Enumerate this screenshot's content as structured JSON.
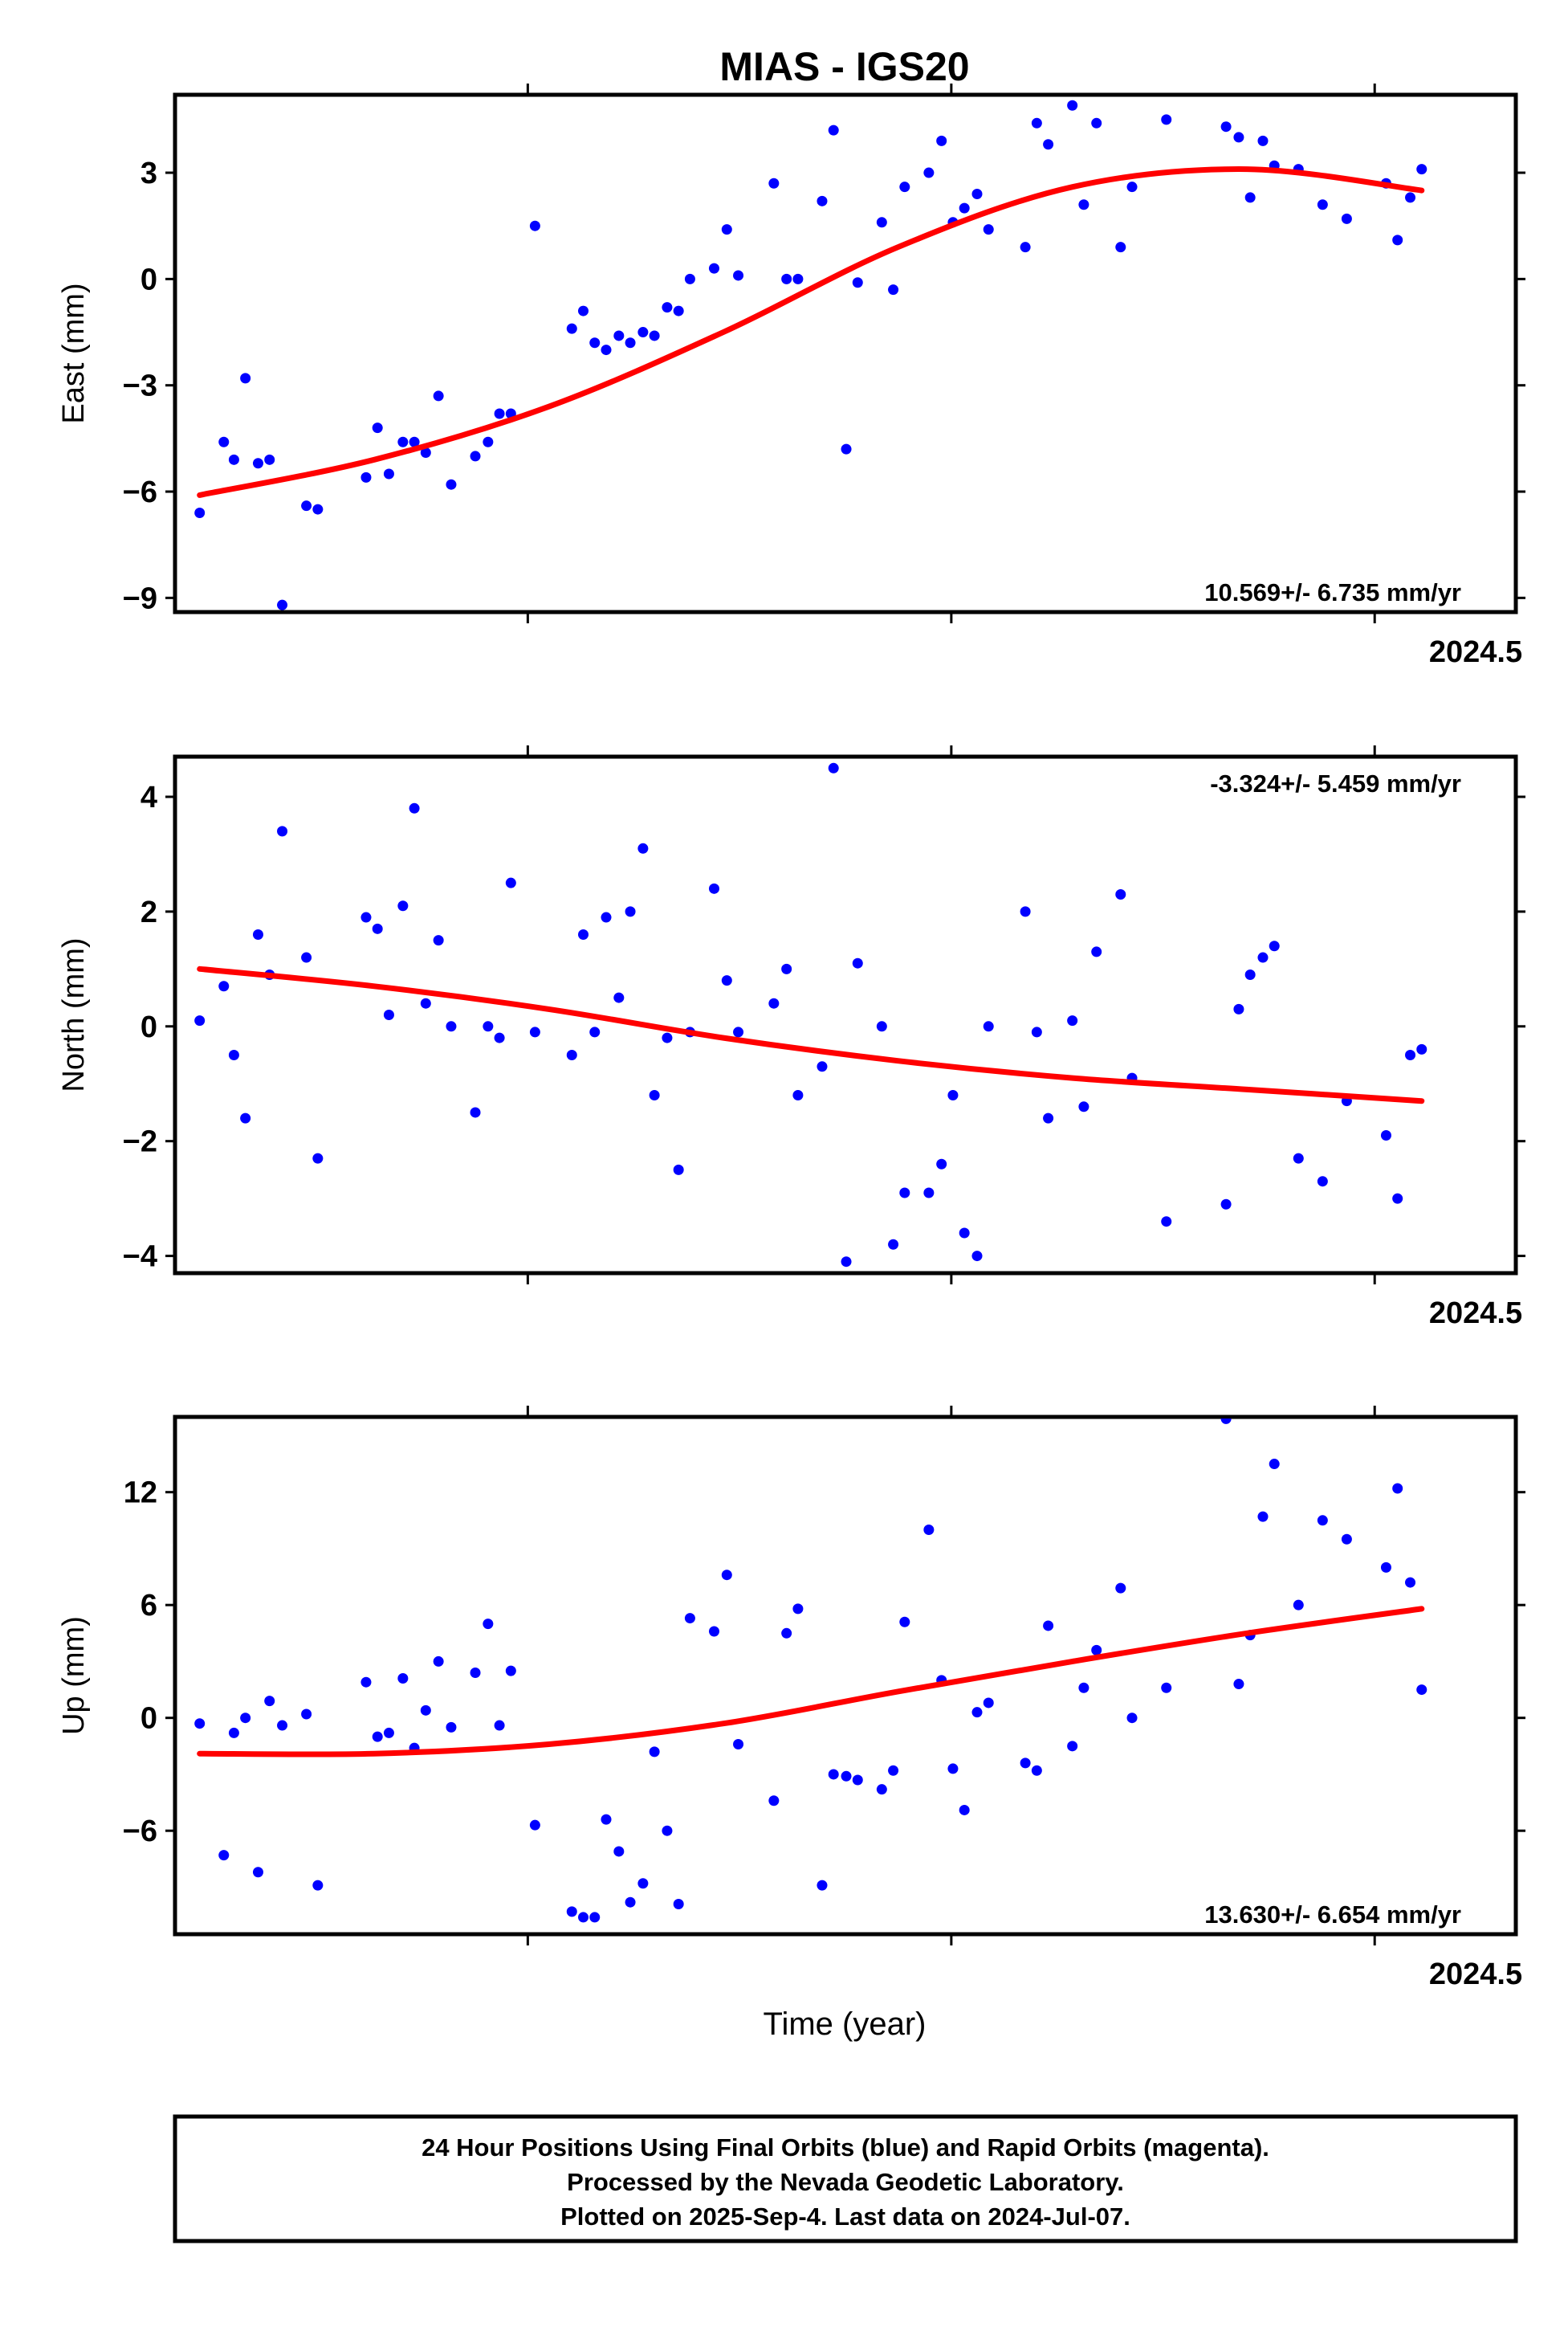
{
  "chart_data": {
    "type": "scatter",
    "title": "MIAS - IGS20",
    "xlabel": "Time (year)",
    "xlim": [
      2023.5556,
      2024.6111
    ],
    "x_ticks": [
      2023.8333,
      2024.1667,
      2024.5
    ],
    "x_tick_labels": [
      "2024.5"
    ],
    "series_colors": {
      "final": "#0000ff",
      "fit": "#ff0000"
    },
    "panels": [
      {
        "name": "east",
        "ylabel": "East (mm)",
        "ylim": [
          -9.4,
          5.2
        ],
        "y_ticks": [
          -9,
          -6,
          -3,
          0,
          3
        ],
        "y_tick_labels": [
          "−9",
          "−6",
          "−3",
          "0",
          "3"
        ],
        "rate_label": "10.569+/- 6.735 mm/yr",
        "rate_position": "bottom-right",
        "x": [
          2023.575,
          2023.594,
          2023.602,
          2023.611,
          2023.621,
          2023.63,
          2023.64,
          2023.659,
          2023.668,
          2023.706,
          2023.715,
          2023.724,
          2023.735,
          2023.744,
          2023.753,
          2023.763,
          2023.773,
          2023.792,
          2023.802,
          2023.811,
          2023.82,
          2023.839,
          2023.868,
          2023.877,
          2023.886,
          2023.895,
          2023.905,
          2023.914,
          2023.924,
          2023.933,
          2023.943,
          2023.952,
          2023.961,
          2023.98,
          2023.99,
          2023.999,
          2024.027,
          2024.037,
          2024.046,
          2024.065,
          2024.074,
          2024.084,
          2024.093,
          2024.112,
          2024.121,
          2024.13,
          2024.149,
          2024.159,
          2024.168,
          2024.177,
          2024.187,
          2024.196,
          2024.225,
          2024.234,
          2024.243,
          2024.262,
          2024.271,
          2024.281,
          2024.3,
          2024.309,
          2024.336,
          2024.383,
          2024.393,
          2024.402,
          2024.412,
          2024.421,
          2024.44,
          2024.459,
          2024.478,
          2024.509,
          2024.518,
          2024.528,
          2024.537
        ],
        "y": [
          -6.6,
          -4.6,
          -5.1,
          -2.8,
          -5.2,
          -5.1,
          -9.2,
          -6.4,
          -6.5,
          -5.6,
          -4.2,
          -5.5,
          -4.6,
          -4.6,
          -4.9,
          -3.3,
          -5.8,
          -5,
          -4.6,
          -3.8,
          -3.8,
          1.5,
          -1.4,
          -0.9,
          -1.8,
          -2,
          -1.6,
          -1.8,
          -1.5,
          -1.6,
          -0.8,
          -0.9,
          0,
          0.3,
          1.4,
          0.1,
          2.7,
          0,
          0,
          2.2,
          4.2,
          -4.8,
          -0.1,
          1.6,
          -0.3,
          2.6,
          3,
          3.9,
          1.6,
          2,
          2.4,
          1.4,
          0.9,
          4.4,
          3.8,
          4.9,
          2.1,
          4.4,
          0.9,
          2.6,
          4.5,
          4.3,
          4,
          2.3,
          3.9,
          3.2,
          3.1,
          2.1,
          1.7,
          2.7,
          1.1,
          2.3,
          3.1
        ],
        "fit_y": [
          -6.1,
          -5.1,
          -3.6,
          -1.5,
          0.9,
          2.6,
          3.1,
          2.5
        ]
      },
      {
        "name": "north",
        "ylabel": "North (mm)",
        "ylim": [
          -4.3,
          4.7
        ],
        "y_ticks": [
          -4,
          -2,
          0,
          2,
          4
        ],
        "y_tick_labels": [
          "−4",
          "−2",
          "0",
          "2",
          "4"
        ],
        "rate_label": "-3.324+/- 5.459 mm/yr",
        "rate_position": "top-right",
        "x": [
          2023.575,
          2023.594,
          2023.602,
          2023.611,
          2023.621,
          2023.63,
          2023.64,
          2023.659,
          2023.668,
          2023.706,
          2023.715,
          2023.724,
          2023.735,
          2023.744,
          2023.753,
          2023.763,
          2023.773,
          2023.792,
          2023.802,
          2023.811,
          2023.82,
          2023.839,
          2023.868,
          2023.877,
          2023.886,
          2023.895,
          2023.905,
          2023.914,
          2023.924,
          2023.933,
          2023.943,
          2023.952,
          2023.961,
          2023.98,
          2023.99,
          2023.999,
          2024.027,
          2024.037,
          2024.046,
          2024.065,
          2024.074,
          2024.084,
          2024.093,
          2024.112,
          2024.121,
          2024.13,
          2024.149,
          2024.159,
          2024.168,
          2024.177,
          2024.187,
          2024.196,
          2024.225,
          2024.234,
          2024.243,
          2024.262,
          2024.271,
          2024.281,
          2024.3,
          2024.309,
          2024.336,
          2024.383,
          2024.393,
          2024.402,
          2024.412,
          2024.421,
          2024.44,
          2024.459,
          2024.478,
          2024.509,
          2024.518,
          2024.528,
          2024.537
        ],
        "y": [
          0.1,
          0.7,
          -0.5,
          -1.6,
          1.6,
          0.9,
          3.4,
          1.2,
          -2.3,
          1.9,
          1.7,
          0.2,
          2.1,
          3.8,
          0.4,
          1.5,
          0,
          -1.5,
          0,
          -0.2,
          2.5,
          -0.1,
          -0.5,
          1.6,
          -0.1,
          1.9,
          0.5,
          2,
          3.1,
          -1.2,
          -0.2,
          -2.5,
          -0.1,
          2.4,
          0.8,
          -0.1,
          0.4,
          1,
          -1.2,
          -0.7,
          4.5,
          -4.1,
          1.1,
          0,
          -3.8,
          -2.9,
          -2.9,
          -2.4,
          -1.2,
          -3.6,
          -4,
          0,
          2,
          -0.1,
          -1.6,
          0.1,
          -1.4,
          1.3,
          2.3,
          -0.9,
          -3.4,
          -3.1,
          0.3,
          0.9,
          1.2,
          1.4,
          -2.3,
          -2.7,
          -1.3,
          -1.9,
          -3,
          -0.5,
          -0.4
        ],
        "fit_y": [
          1.0,
          0.7,
          0.3,
          -0.2,
          -0.6,
          -0.9,
          -1.1,
          -1.3
        ]
      },
      {
        "name": "up",
        "ylabel": "Up (mm)",
        "ylim": [
          -11.5,
          16
        ],
        "y_ticks": [
          -6,
          0,
          6,
          12
        ],
        "y_tick_labels": [
          "−6",
          "0",
          "6",
          "12"
        ],
        "rate_label": "13.630+/- 6.654 mm/yr",
        "rate_position": "bottom-right",
        "x": [
          2023.575,
          2023.594,
          2023.602,
          2023.611,
          2023.621,
          2023.63,
          2023.64,
          2023.659,
          2023.668,
          2023.706,
          2023.715,
          2023.724,
          2023.735,
          2023.744,
          2023.753,
          2023.763,
          2023.773,
          2023.792,
          2023.802,
          2023.811,
          2023.82,
          2023.839,
          2023.868,
          2023.877,
          2023.886,
          2023.895,
          2023.905,
          2023.914,
          2023.924,
          2023.933,
          2023.943,
          2023.952,
          2023.961,
          2023.98,
          2023.99,
          2023.999,
          2024.027,
          2024.037,
          2024.046,
          2024.065,
          2024.074,
          2024.084,
          2024.093,
          2024.112,
          2024.121,
          2024.13,
          2024.149,
          2024.159,
          2024.168,
          2024.177,
          2024.187,
          2024.196,
          2024.225,
          2024.234,
          2024.243,
          2024.262,
          2024.271,
          2024.281,
          2024.3,
          2024.309,
          2024.336,
          2024.383,
          2024.393,
          2024.402,
          2024.412,
          2024.421,
          2024.44,
          2024.459,
          2024.478,
          2024.509,
          2024.518,
          2024.528,
          2024.537
        ],
        "y": [
          -0.3,
          -7.3,
          -0.8,
          0,
          -8.2,
          0.9,
          -0.4,
          0.2,
          -8.9,
          1.9,
          -1,
          -0.8,
          2.1,
          -1.6,
          0.4,
          3,
          -0.5,
          2.4,
          5,
          -0.4,
          2.5,
          -5.7,
          -10.3,
          -10.6,
          -10.6,
          -5.4,
          -7.1,
          -9.8,
          -8.8,
          -1.8,
          -6,
          -9.9,
          5.3,
          4.6,
          7.6,
          -1.4,
          -4.4,
          4.5,
          5.8,
          -8.9,
          -3,
          -3.1,
          -3.3,
          -3.8,
          -2.8,
          5.1,
          10,
          2,
          -2.7,
          -4.9,
          0.3,
          0.8,
          -2.4,
          -2.8,
          4.9,
          -1.5,
          1.6,
          3.6,
          6.9,
          0,
          1.6,
          15.9,
          1.8,
          4.4,
          10.7,
          13.5,
          6,
          10.5,
          9.5,
          8,
          12.2,
          7.2,
          1.5
        ],
        "fit_y": [
          -1.9,
          -1.9,
          -1.4,
          -0.3,
          1.4,
          3.0,
          4.5,
          5.8
        ]
      }
    ]
  },
  "footer": {
    "line1": "24 Hour Positions Using Final Orbits (blue) and Rapid Orbits (magenta).",
    "line2": "Processed by the Nevada Geodetic Laboratory.",
    "line3": "Plotted on 2025-Sep-4. Last data on 2024-Jul-07."
  }
}
